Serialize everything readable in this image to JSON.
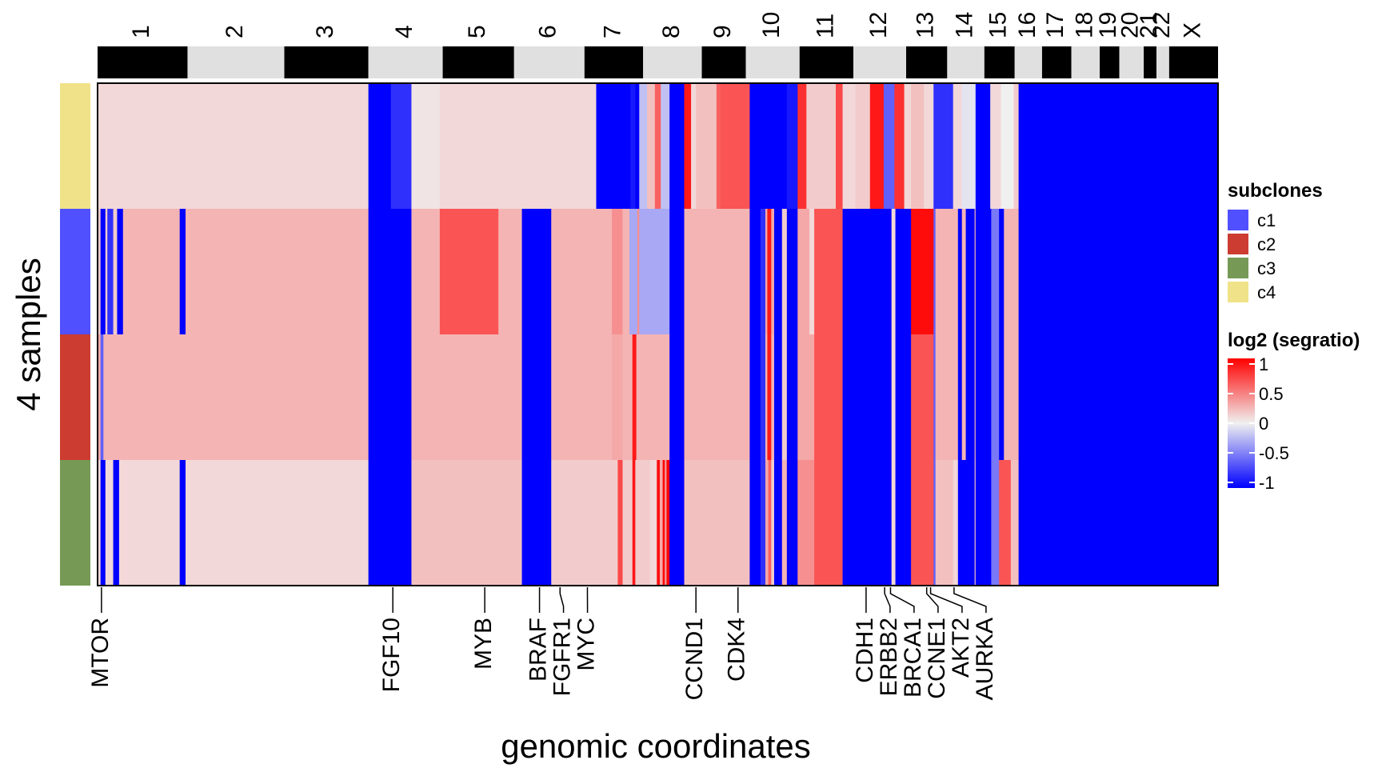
{
  "chart_data": {
    "type": "heatmap",
    "xlabel": "genomic coordinates",
    "ylabel": "4 samples",
    "chromosomes": [
      {
        "name": "1",
        "size": 9.2
      },
      {
        "name": "2",
        "size": 9.9
      },
      {
        "name": "3",
        "size": 8.6
      },
      {
        "name": "4",
        "size": 7.6
      },
      {
        "name": "5",
        "size": 7.3
      },
      {
        "name": "6",
        "size": 7.2
      },
      {
        "name": "7",
        "size": 6.0
      },
      {
        "name": "8",
        "size": 6.0
      },
      {
        "name": "9",
        "size": 4.5
      },
      {
        "name": "10",
        "size": 5.5
      },
      {
        "name": "11",
        "size": 5.5
      },
      {
        "name": "12",
        "size": 5.4
      },
      {
        "name": "13",
        "size": 4.2
      },
      {
        "name": "14",
        "size": 3.8
      },
      {
        "name": "15",
        "size": 3.1
      },
      {
        "name": "16",
        "size": 2.8
      },
      {
        "name": "17",
        "size": 3.0
      },
      {
        "name": "18",
        "size": 2.9
      },
      {
        "name": "19",
        "size": 2.0
      },
      {
        "name": "20",
        "size": 2.5
      },
      {
        "name": "21",
        "size": 1.3
      },
      {
        "name": "22",
        "size": 1.3
      },
      {
        "name": "X",
        "size": 5.0
      }
    ],
    "samples": [
      "c4",
      "c1",
      "c2",
      "c3"
    ],
    "segments": [
      [
        [
          0,
          0.1
        ],
        [
          27.7,
          -1
        ],
        [
          30,
          -0.8
        ],
        [
          32.1,
          0.05
        ],
        [
          35,
          0.1
        ],
        [
          51,
          -1
        ],
        [
          54.5,
          -0.9
        ],
        [
          55,
          -1
        ],
        [
          55.4,
          -0.2
        ],
        [
          56.2,
          0.2
        ],
        [
          57,
          0.6
        ],
        [
          57.6,
          -0.2
        ],
        [
          58.5,
          -1
        ],
        [
          60,
          0.9
        ],
        [
          60.7,
          0.1
        ],
        [
          61.2,
          0.2
        ],
        [
          63.3,
          0.6
        ],
        [
          63.7,
          0.65
        ],
        [
          66.7,
          -1
        ],
        [
          70.5,
          -0.9
        ],
        [
          71.6,
          0.8
        ],
        [
          72.5,
          0.15
        ],
        [
          75.5,
          0.7
        ],
        [
          76.2,
          0.1
        ],
        [
          77.5,
          0.15
        ],
        [
          79,
          0.9
        ],
        [
          80.4,
          -0.6
        ],
        [
          81.5,
          0.8
        ],
        [
          82.5,
          0.1
        ],
        [
          83.2,
          0.2
        ],
        [
          84.5,
          0.1
        ],
        [
          85.5,
          -0.8
        ],
        [
          87.5,
          0.1
        ],
        [
          88.4,
          -0.05
        ],
        [
          89.8,
          -1
        ],
        [
          91.3,
          0.1
        ],
        [
          92.4,
          0
        ],
        [
          93.7,
          0.15
        ],
        [
          94.2,
          -1
        ]
      ],
      [
        [
          0,
          0.15
        ],
        [
          0.3,
          -1
        ],
        [
          0.8,
          0.15
        ],
        [
          1,
          -0.8
        ],
        [
          1.6,
          0.15
        ],
        [
          2,
          -1
        ],
        [
          2.6,
          0.25
        ],
        [
          8.4,
          -1
        ],
        [
          9,
          0.25
        ],
        [
          27.7,
          -1
        ],
        [
          32.1,
          0.25
        ],
        [
          35,
          0.65
        ],
        [
          41,
          0.25
        ],
        [
          43.4,
          -1
        ],
        [
          46.4,
          0.25
        ],
        [
          47.8,
          0.25
        ],
        [
          52.6,
          0.4
        ],
        [
          53.7,
          0.25
        ],
        [
          54.4,
          -0.3
        ],
        [
          55.2,
          0.4
        ],
        [
          55.4,
          -0.3
        ],
        [
          58.5,
          -1
        ],
        [
          60,
          0.25
        ],
        [
          66.7,
          -1
        ],
        [
          67.8,
          -0.8
        ],
        [
          68.3,
          0.3
        ],
        [
          68.5,
          0.9
        ],
        [
          68.9,
          0.3
        ],
        [
          69.2,
          -1
        ],
        [
          70,
          0.15
        ],
        [
          70.5,
          -1
        ],
        [
          71.6,
          0.3
        ],
        [
          72.8,
          0.1
        ],
        [
          73.3,
          0.65
        ],
        [
          76.2,
          -1
        ],
        [
          81.2,
          0.1
        ],
        [
          81.6,
          -1
        ],
        [
          83.2,
          0.95
        ],
        [
          85.5,
          -0.6
        ],
        [
          85.7,
          0.25
        ],
        [
          87.5,
          0.25
        ],
        [
          88,
          -1
        ],
        [
          88.4,
          0.25
        ],
        [
          88.8,
          -1
        ],
        [
          89.7,
          0.25
        ],
        [
          89.8,
          -1
        ],
        [
          91.4,
          -0.5
        ],
        [
          92.2,
          -1
        ],
        [
          92.7,
          0.25
        ],
        [
          94.2,
          -1
        ]
      ],
      [
        [
          0,
          0.3
        ],
        [
          0.3,
          -0.6
        ],
        [
          0.6,
          0.25
        ],
        [
          2.6,
          0.25
        ],
        [
          27.7,
          -1
        ],
        [
          32.1,
          0.25
        ],
        [
          43.4,
          -1
        ],
        [
          46.4,
          0.25
        ],
        [
          47.8,
          0.25
        ],
        [
          52.6,
          0.3
        ],
        [
          53.7,
          0.25
        ],
        [
          54.4,
          0.25
        ],
        [
          54.7,
          0.9
        ],
        [
          55.1,
          0.25
        ],
        [
          58.5,
          -1
        ],
        [
          60,
          0.25
        ],
        [
          66.7,
          -1
        ],
        [
          67.8,
          -0.8
        ],
        [
          68.3,
          0.25
        ],
        [
          68.5,
          0.9
        ],
        [
          68.9,
          0.25
        ],
        [
          69.2,
          -1
        ],
        [
          70,
          0.15
        ],
        [
          70.5,
          -1
        ],
        [
          71.6,
          0.3
        ],
        [
          73.3,
          0.65
        ],
        [
          76.2,
          -1
        ],
        [
          81.2,
          0.1
        ],
        [
          81.6,
          -1
        ],
        [
          83.2,
          0.65
        ],
        [
          85.5,
          -0.6
        ],
        [
          85.7,
          0.25
        ],
        [
          88,
          -1
        ],
        [
          88.4,
          0.25
        ],
        [
          88.8,
          -1
        ],
        [
          89.7,
          0.25
        ],
        [
          89.8,
          -1
        ],
        [
          91.4,
          -0.5
        ],
        [
          92.2,
          -1
        ],
        [
          92.7,
          0.25
        ],
        [
          94.2,
          -1
        ]
      ],
      [
        [
          0,
          0.1
        ],
        [
          0.3,
          -1
        ],
        [
          0.8,
          0.1
        ],
        [
          1.6,
          -1
        ],
        [
          2.2,
          0.1
        ],
        [
          7.3,
          0.1
        ],
        [
          8.4,
          -1
        ],
        [
          9,
          0.1
        ],
        [
          27.7,
          -1
        ],
        [
          32.1,
          0.2
        ],
        [
          43.4,
          -1
        ],
        [
          46.4,
          0.15
        ],
        [
          52.6,
          0.15
        ],
        [
          53.2,
          0.7
        ],
        [
          53.7,
          0.15
        ],
        [
          54.7,
          0.9
        ],
        [
          55,
          0.15
        ],
        [
          56.5,
          0.1
        ],
        [
          57.2,
          0.95
        ],
        [
          57.5,
          0.3
        ],
        [
          57.8,
          1
        ],
        [
          58,
          0.4
        ],
        [
          58.2,
          1
        ],
        [
          58.5,
          -1
        ],
        [
          60,
          0.2
        ],
        [
          66.7,
          -1
        ],
        [
          67.8,
          -0.8
        ],
        [
          68.3,
          0.3
        ],
        [
          68.6,
          0.6
        ],
        [
          68.9,
          0.15
        ],
        [
          69.2,
          -1
        ],
        [
          70,
          0.25
        ],
        [
          70.5,
          -1
        ],
        [
          71.6,
          0.4
        ],
        [
          73.3,
          0.65
        ],
        [
          76.2,
          -1
        ],
        [
          81.2,
          0.1
        ],
        [
          81.6,
          -1
        ],
        [
          83.2,
          0.65
        ],
        [
          85.5,
          -0.6
        ],
        [
          85.7,
          0.2
        ],
        [
          87.5,
          0.1
        ],
        [
          88,
          -1
        ],
        [
          89.7,
          0.2
        ],
        [
          89.8,
          -1
        ],
        [
          91.4,
          -0.5
        ],
        [
          92.2,
          0.65
        ],
        [
          93.4,
          0.2
        ],
        [
          94.2,
          -1
        ]
      ]
    ],
    "gene_markers": [
      {
        "label": "MTOR",
        "pos": 0.4
      },
      {
        "label": "FGF10",
        "pos": 30.2
      },
      {
        "label": "MYB",
        "pos": 39.6
      },
      {
        "label": "BRAF",
        "pos": 45.2
      },
      {
        "label": "FGFR1",
        "pos": 47.3
      },
      {
        "label": "MYC",
        "pos": 50.1
      },
      {
        "label": "CCND1",
        "pos": 61.2
      },
      {
        "label": "CDK4",
        "pos": 65.5
      },
      {
        "label": "CDH1",
        "pos": 78.6
      },
      {
        "label": "ERBB2",
        "pos": 80.5
      },
      {
        "label": "BRCA1",
        "pos": 81.1
      },
      {
        "label": "CCNE1",
        "pos": 84.8
      },
      {
        "label": "AKT2",
        "pos": 85.2
      },
      {
        "label": "AURKA",
        "pos": 87.6
      }
    ],
    "legend_subclones": {
      "title": "subclones",
      "items": [
        {
          "label": "c1",
          "color": "#5050ff"
        },
        {
          "label": "c2",
          "color": "#cc3c30"
        },
        {
          "label": "c3",
          "color": "#769a55"
        },
        {
          "label": "c4",
          "color": "#f0e288"
        }
      ]
    },
    "sample_colors": [
      "#f0e288",
      "#5050ff",
      "#cc3c30",
      "#769a55"
    ],
    "legend_color": {
      "title": "log2 (segratio)",
      "ticks": [
        "1",
        "0.5",
        "0",
        "-0.5",
        "-1"
      ],
      "range": [
        -1,
        1
      ]
    },
    "color_scale": {
      "neg": "#0000ff",
      "zero": "#f0f0f0",
      "pos": "#ff0000"
    }
  }
}
